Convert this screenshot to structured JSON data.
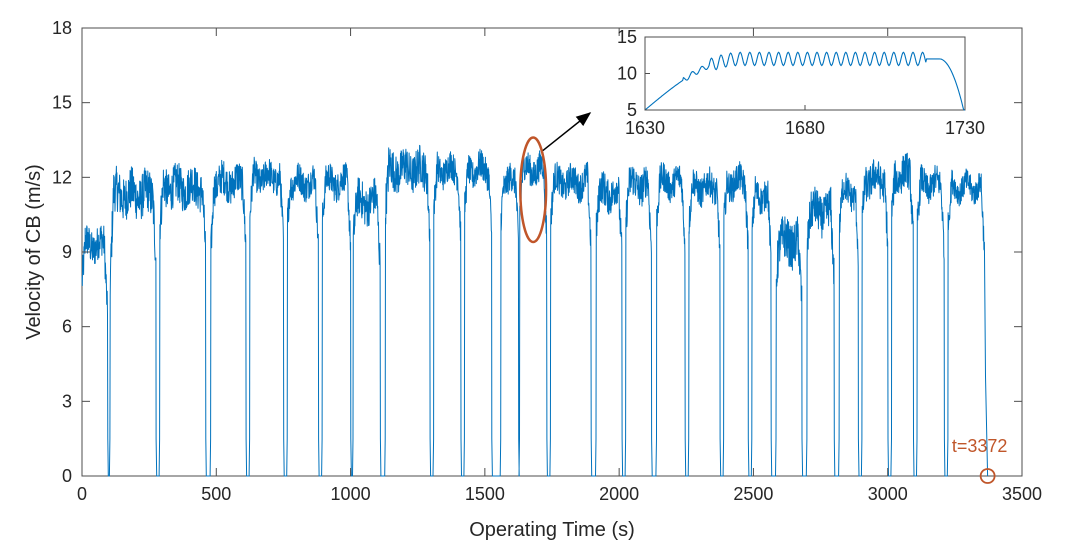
{
  "chart_data": {
    "type": "line",
    "xlabel": "Operating Time (s)",
    "ylabel": "Velocity of CB (m/s)",
    "xlim": [
      0,
      3500
    ],
    "ylim": [
      0,
      18
    ],
    "xticks": [
      0,
      500,
      1000,
      1500,
      2000,
      2500,
      3000,
      3500
    ],
    "yticks": [
      0,
      3,
      6,
      9,
      12,
      15,
      18
    ],
    "grid": false,
    "series_color": "#0072BD",
    "annotation_color": "#C0562A",
    "segments": [
      {
        "t0": 0,
        "t1": 95,
        "level": 9.3,
        "amp": 0.7,
        "end_low": 6.5
      },
      {
        "t0": 105,
        "t1": 275,
        "level": 11.3,
        "amp": 0.9,
        "start_low": 7.8
      },
      {
        "t0": 290,
        "t1": 460,
        "level": 11.6,
        "amp": 0.8
      },
      {
        "t0": 480,
        "t1": 610,
        "level": 11.8,
        "amp": 0.7,
        "start_low": 9.0
      },
      {
        "t0": 625,
        "t1": 750,
        "level": 12.0,
        "amp": 0.6
      },
      {
        "t0": 765,
        "t1": 880,
        "level": 11.8,
        "amp": 0.6
      },
      {
        "t0": 895,
        "t1": 1000,
        "level": 11.8,
        "amp": 0.6
      },
      {
        "t0": 1010,
        "t1": 1110,
        "level": 11.0,
        "amp": 0.8,
        "end_low": 8.5
      },
      {
        "t0": 1130,
        "t1": 1295,
        "level": 12.3,
        "amp": 0.8
      },
      {
        "t0": 1310,
        "t1": 1410,
        "level": 12.3,
        "amp": 0.6
      },
      {
        "t0": 1425,
        "t1": 1525,
        "level": 12.3,
        "amp": 0.6
      },
      {
        "t0": 1560,
        "t1": 1625,
        "level": 11.8,
        "amp": 0.6
      },
      {
        "t0": 1630,
        "t1": 1730,
        "level": 12.3,
        "amp": 0.6
      },
      {
        "t0": 1745,
        "t1": 1895,
        "level": 11.8,
        "amp": 0.6
      },
      {
        "t0": 1915,
        "t1": 2010,
        "level": 11.4,
        "amp": 0.7
      },
      {
        "t0": 2025,
        "t1": 2120,
        "level": 11.7,
        "amp": 0.7
      },
      {
        "t0": 2140,
        "t1": 2245,
        "level": 11.8,
        "amp": 0.6
      },
      {
        "t0": 2260,
        "t1": 2375,
        "level": 11.6,
        "amp": 0.6
      },
      {
        "t0": 2390,
        "t1": 2480,
        "level": 11.8,
        "amp": 0.6
      },
      {
        "t0": 2495,
        "t1": 2565,
        "level": 11.3,
        "amp": 0.6
      },
      {
        "t0": 2585,
        "t1": 2680,
        "level": 9.4,
        "amp": 0.9,
        "start_low": 8.0
      },
      {
        "t0": 2700,
        "t1": 2800,
        "level": 10.6,
        "amp": 0.8
      },
      {
        "t0": 2820,
        "t1": 2890,
        "level": 11.4,
        "amp": 0.6
      },
      {
        "t0": 2905,
        "t1": 3000,
        "level": 11.9,
        "amp": 0.7
      },
      {
        "t0": 3015,
        "t1": 3095,
        "level": 12.1,
        "amp": 0.7
      },
      {
        "t0": 3110,
        "t1": 3210,
        "level": 11.7,
        "amp": 0.6
      },
      {
        "t0": 3225,
        "t1": 3360,
        "level": 11.6,
        "amp": 0.5
      }
    ],
    "inset": {
      "xlim": [
        1630,
        1730
      ],
      "ylim": [
        5,
        15
      ],
      "xticks": [
        1630,
        1680,
        1730
      ],
      "yticks": [
        5,
        10,
        15
      ],
      "plateau": 12.0,
      "ripple_amp": 0.9,
      "ripple_period": 3.0
    },
    "highlight": {
      "t_center": 1680,
      "v_center": 11.5,
      "t_halfwidth": 48,
      "v_halfheight": 2.1
    },
    "end_marker": {
      "t": 3372,
      "v": 0,
      "label": "t=3372"
    }
  }
}
